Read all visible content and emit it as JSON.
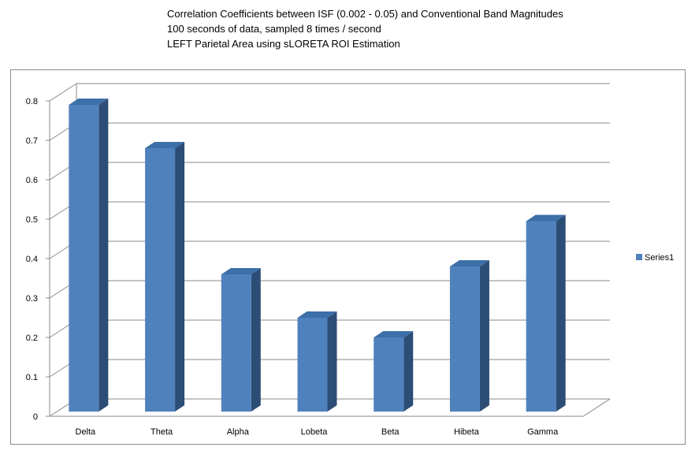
{
  "chart_data": {
    "type": "bar",
    "title_lines": [
      "Correlation Coefficients between ISF (0.002 - 0.05) and Conventional Band Magnitudes",
      "100 seconds of data, sampled 8 times / second",
      "LEFT Parietal Area using sLORETA ROI Estimation"
    ],
    "categories": [
      "Delta",
      "Theta",
      "Alpha",
      "Lobeta",
      "Beta",
      "Hibeta",
      "Gamma"
    ],
    "series": [
      {
        "name": "Series1",
        "values": [
          0.79,
          0.68,
          0.36,
          0.25,
          0.2,
          0.38,
          0.495
        ]
      }
    ],
    "ylim": [
      0,
      0.8
    ],
    "yticks": [
      "0",
      "0.1",
      "0.2",
      "0.3",
      "0.4",
      "0.5",
      "0.6",
      "0.7",
      "0.8"
    ],
    "grid": true,
    "legend_position": "right",
    "colors": {
      "bar_front": "#4f81bd",
      "bar_top": "#3d6fa8",
      "bar_side": "#2c4d75",
      "grid": "#898989",
      "axis": "#898989"
    }
  }
}
